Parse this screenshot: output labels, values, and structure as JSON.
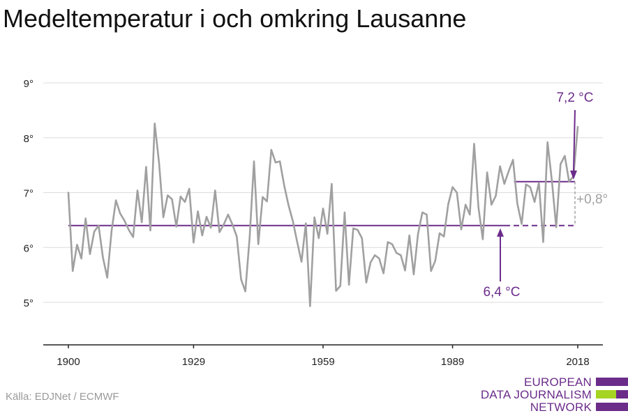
{
  "title": "Medeltemperatur i och omkring Lausanne",
  "source": "Källa: EDJNet / ECMWF",
  "logo": {
    "lines": [
      "EUROPEAN",
      "DATA JOURNALISM",
      "NETWORK"
    ]
  },
  "colors": {
    "series": "#a0a0a0",
    "accent": "#6b2c8a",
    "grid": "#dcdcdc",
    "logo_green": "#a6d422"
  },
  "chart_data": {
    "type": "line",
    "title": "Medeltemperatur i och omkring Lausanne",
    "xlabel": "",
    "ylabel": "",
    "xlim": [
      1900,
      2018
    ],
    "ylim": [
      4.5,
      9.2
    ],
    "grid": true,
    "x_ticks": [
      1900,
      1929,
      1959,
      1989,
      2018
    ],
    "y_ticks": [
      {
        "value": 5,
        "label": "5°"
      },
      {
        "value": 6,
        "label": "6°"
      },
      {
        "value": 7,
        "label": "7°"
      },
      {
        "value": 8,
        "label": "8°"
      },
      {
        "value": 9,
        "label": "9°"
      }
    ],
    "series": [
      {
        "x": [
          1900,
          1901,
          1902,
          1903,
          1904,
          1905,
          1906,
          1907,
          1908,
          1909,
          1910,
          1911,
          1912,
          1913,
          1914,
          1915,
          1916,
          1917,
          1918,
          1919,
          1920,
          1921,
          1922,
          1923,
          1924,
          1925,
          1926,
          1927,
          1928,
          1929,
          1930,
          1931,
          1932,
          1933,
          1934,
          1935,
          1936,
          1937,
          1938,
          1939,
          1940,
          1941,
          1942,
          1943,
          1944,
          1945,
          1946,
          1947,
          1948,
          1949,
          1950,
          1951,
          1952,
          1953,
          1954,
          1955,
          1956,
          1957,
          1958,
          1959,
          1960,
          1961,
          1962,
          1963,
          1964,
          1965,
          1966,
          1967,
          1968,
          1969,
          1970,
          1971,
          1972,
          1973,
          1974,
          1975,
          1976,
          1977,
          1978,
          1979,
          1980,
          1981,
          1982,
          1983,
          1984,
          1985,
          1986,
          1987,
          1988,
          1989,
          1990,
          1991,
          1992,
          1993,
          1994,
          1995,
          1996,
          1997,
          1998,
          1999,
          2000,
          2001,
          2002,
          2003,
          2004,
          2005,
          2006,
          2007,
          2008,
          2009,
          2010,
          2011,
          2012,
          2013,
          2014,
          2015,
          2016,
          2017,
          2018
        ],
        "values": [
          7.0,
          5.57,
          6.05,
          5.8,
          6.53,
          5.88,
          6.29,
          6.4,
          5.82,
          5.45,
          6.3,
          6.86,
          6.62,
          6.49,
          6.32,
          6.19,
          7.04,
          6.46,
          7.47,
          6.31,
          8.26,
          7.55,
          6.55,
          6.95,
          6.88,
          6.38,
          6.93,
          6.83,
          7.07,
          6.09,
          6.66,
          6.22,
          6.56,
          6.36,
          7.04,
          6.28,
          6.42,
          6.6,
          6.42,
          6.2,
          5.42,
          5.2,
          6.19,
          7.57,
          6.06,
          6.92,
          6.84,
          7.78,
          7.55,
          7.57,
          7.13,
          6.77,
          6.48,
          6.1,
          5.74,
          6.44,
          4.93,
          6.55,
          6.17,
          6.71,
          6.25,
          7.16,
          5.21,
          5.3,
          6.64,
          5.32,
          6.35,
          6.32,
          6.17,
          5.36,
          5.73,
          5.86,
          5.8,
          5.53,
          6.1,
          6.06,
          5.9,
          5.86,
          5.58,
          6.22,
          5.51,
          6.25,
          6.64,
          6.6,
          5.57,
          5.76,
          6.26,
          6.2,
          6.79,
          7.1,
          7.0,
          6.33,
          6.78,
          6.6,
          7.89,
          6.73,
          6.15,
          7.37,
          6.78,
          6.94,
          7.48,
          7.16,
          7.39,
          7.6,
          6.8,
          6.43,
          7.15,
          7.1,
          6.83,
          7.18,
          6.1,
          7.92,
          7.22,
          6.37,
          7.52,
          7.67,
          7.2,
          7.3,
          8.2
        ]
      }
    ],
    "annotations": {
      "baseline": {
        "value": 6.4,
        "label": "6,4 °C",
        "from": 1900,
        "to": 2018
      },
      "recent": {
        "value": 7.2,
        "label": "7,2 °C",
        "from": 2000,
        "to": 2018
      },
      "difference": {
        "label": "+0,8°"
      }
    }
  }
}
